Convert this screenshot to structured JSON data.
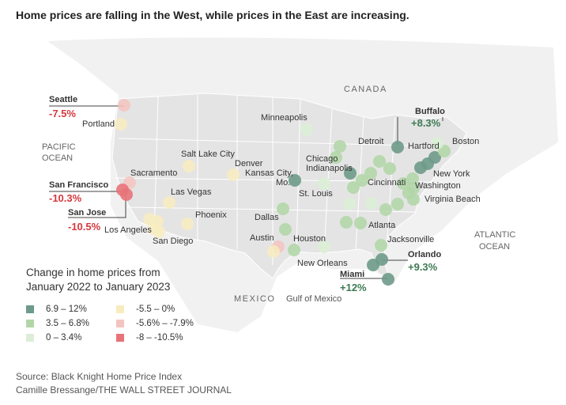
{
  "title": "Home prices are falling in the West, while prices in the East are increasing.",
  "map_labels": {
    "canada": "CANADA",
    "mexico": "MEXICO",
    "pacific_1": "PACIFIC",
    "pacific_2": "OCEAN",
    "atlantic_1": "ATLANTIC",
    "atlantic_2": "OCEAN",
    "gulf": "Gulf of Mexico"
  },
  "legend": {
    "title_line1": "Change in home prices from",
    "title_line2": "January 2022 to January 2023",
    "items": [
      {
        "label": "6.9 – 12%",
        "color": "#6e9a8a"
      },
      {
        "label": "3.5 – 6.8%",
        "color": "#b2d6a8"
      },
      {
        "label": "0 – 3.4%",
        "color": "#dceed6"
      },
      {
        "label": "-5.5 – 0%",
        "color": "#f8ecbf"
      },
      {
        "label": "-5.6% – -7.9%",
        "color": "#f4c4c0"
      },
      {
        "label": "-8 – -10.5%",
        "color": "#e8737a"
      }
    ]
  },
  "cities": [
    {
      "name": "Seattle",
      "value": "-7.5%",
      "highlight": true
    },
    {
      "name": "Portland"
    },
    {
      "name": "San Francisco",
      "value": "-10.3%",
      "highlight": true
    },
    {
      "name": "San Jose",
      "value": "-10.5%",
      "highlight": true
    },
    {
      "name": "Sacramento"
    },
    {
      "name": "Los Angeles"
    },
    {
      "name": "San Diego"
    },
    {
      "name": "Las Vegas"
    },
    {
      "name": "Phoenix"
    },
    {
      "name": "Salt Lake City"
    },
    {
      "name": "Denver"
    },
    {
      "name": "Dallas"
    },
    {
      "name": "Austin"
    },
    {
      "name": "Houston"
    },
    {
      "name": "Kansas City,"
    },
    {
      "name": "Mo."
    },
    {
      "name": "Minneapolis"
    },
    {
      "name": "St. Louis"
    },
    {
      "name": "Chicago"
    },
    {
      "name": "Indianapolis"
    },
    {
      "name": "Detroit"
    },
    {
      "name": "Cincinnati"
    },
    {
      "name": "New Orleans"
    },
    {
      "name": "Atlanta"
    },
    {
      "name": "Jacksonville"
    },
    {
      "name": "Orlando",
      "value": "+9.3%",
      "highlight": true
    },
    {
      "name": "Miami",
      "value": "+12%",
      "highlight": true
    },
    {
      "name": "Buffalo",
      "value": "+8.3%",
      "highlight": true
    },
    {
      "name": "Hartford"
    },
    {
      "name": "Boston"
    },
    {
      "name": "New York"
    },
    {
      "name": "Washington"
    },
    {
      "name": "Virginia Beach"
    }
  ],
  "source_line1": "Source: Black Knight Home Price Index",
  "source_line2": "Camille Bressange/THE WALL STREET JOURNAL"
}
